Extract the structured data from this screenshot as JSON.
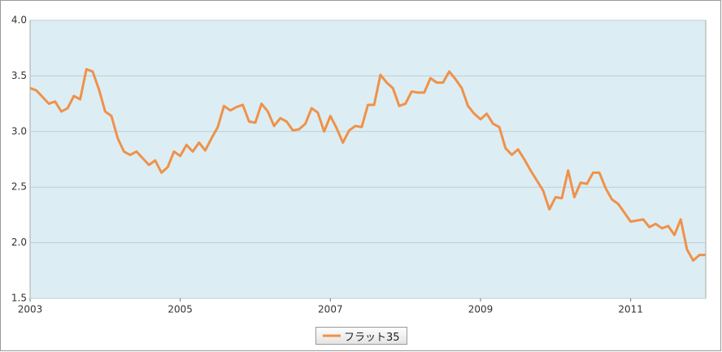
{
  "chart_data": {
    "type": "line",
    "x": [
      2003,
      2003.083,
      2003.167,
      2003.25,
      2003.333,
      2003.417,
      2003.5,
      2003.583,
      2003.667,
      2003.75,
      2003.833,
      2003.917,
      2004,
      2004.083,
      2004.167,
      2004.25,
      2004.333,
      2004.417,
      2004.5,
      2004.583,
      2004.667,
      2004.75,
      2004.833,
      2004.917,
      2005,
      2005.083,
      2005.167,
      2005.25,
      2005.333,
      2005.417,
      2005.5,
      2005.583,
      2005.667,
      2005.75,
      2005.833,
      2005.917,
      2006,
      2006.083,
      2006.167,
      2006.25,
      2006.333,
      2006.417,
      2006.5,
      2006.583,
      2006.667,
      2006.75,
      2006.833,
      2006.917,
      2007,
      2007.083,
      2007.167,
      2007.25,
      2007.333,
      2007.417,
      2007.5,
      2007.583,
      2007.667,
      2007.75,
      2007.833,
      2007.917,
      2008,
      2008.083,
      2008.167,
      2008.25,
      2008.333,
      2008.417,
      2008.5,
      2008.583,
      2008.667,
      2008.75,
      2008.833,
      2008.917,
      2009,
      2009.083,
      2009.167,
      2009.25,
      2009.333,
      2009.417,
      2009.5,
      2009.583,
      2009.667,
      2009.75,
      2009.833,
      2009.917,
      2010,
      2010.083,
      2010.167,
      2010.25,
      2010.333,
      2010.417,
      2010.5,
      2010.583,
      2010.667,
      2010.75,
      2010.833,
      2010.917,
      2011,
      2011.083,
      2011.167,
      2011.25,
      2011.333,
      2011.417,
      2011.5,
      2011.583,
      2011.667,
      2011.75,
      2011.833,
      2011.917,
      2012
    ],
    "series": [
      {
        "name": "フラット35",
        "color": "#f0914a",
        "values": [
          3.39,
          3.37,
          3.31,
          3.25,
          3.27,
          3.18,
          3.21,
          3.32,
          3.29,
          3.56,
          3.54,
          3.38,
          3.18,
          3.14,
          2.94,
          2.82,
          2.79,
          2.82,
          2.76,
          2.7,
          2.74,
          2.63,
          2.68,
          2.82,
          2.78,
          2.88,
          2.82,
          2.9,
          2.83,
          2.94,
          3.04,
          3.23,
          3.19,
          3.22,
          3.24,
          3.09,
          3.08,
          3.25,
          3.18,
          3.05,
          3.12,
          3.09,
          3.01,
          3.02,
          3.07,
          3.21,
          3.17,
          3.0,
          3.14,
          3.03,
          2.9,
          3.01,
          3.05,
          3.04,
          3.24,
          3.24,
          3.51,
          3.44,
          3.39,
          3.23,
          3.25,
          3.36,
          3.35,
          3.35,
          3.48,
          3.44,
          3.44,
          3.54,
          3.47,
          3.39,
          3.23,
          3.16,
          3.11,
          3.16,
          3.07,
          3.04,
          2.85,
          2.79,
          2.84,
          2.75,
          2.65,
          2.56,
          2.47,
          2.3,
          2.41,
          2.4,
          2.65,
          2.41,
          2.54,
          2.53,
          2.63,
          2.63,
          2.49,
          2.39,
          2.35,
          2.27,
          2.19,
          2.2,
          2.21,
          2.14,
          2.17,
          2.13,
          2.15,
          2.07,
          2.21,
          1.94,
          1.84,
          1.89,
          1.89
        ]
      }
    ],
    "xlim": [
      2003,
      2012
    ],
    "xticks": [
      2003,
      2005,
      2007,
      2009,
      2011
    ],
    "ylim": [
      1.5,
      4
    ],
    "yticks": [
      {
        "value": 1.5,
        "label": "1.5"
      },
      {
        "value": 2,
        "label": "2.0"
      },
      {
        "value": 2.5,
        "label": "2.5"
      },
      {
        "value": 3,
        "label": "3.0"
      },
      {
        "value": 3.5,
        "label": "3.5"
      },
      {
        "value": 4,
        "label": "4.0"
      }
    ],
    "grid": true
  }
}
